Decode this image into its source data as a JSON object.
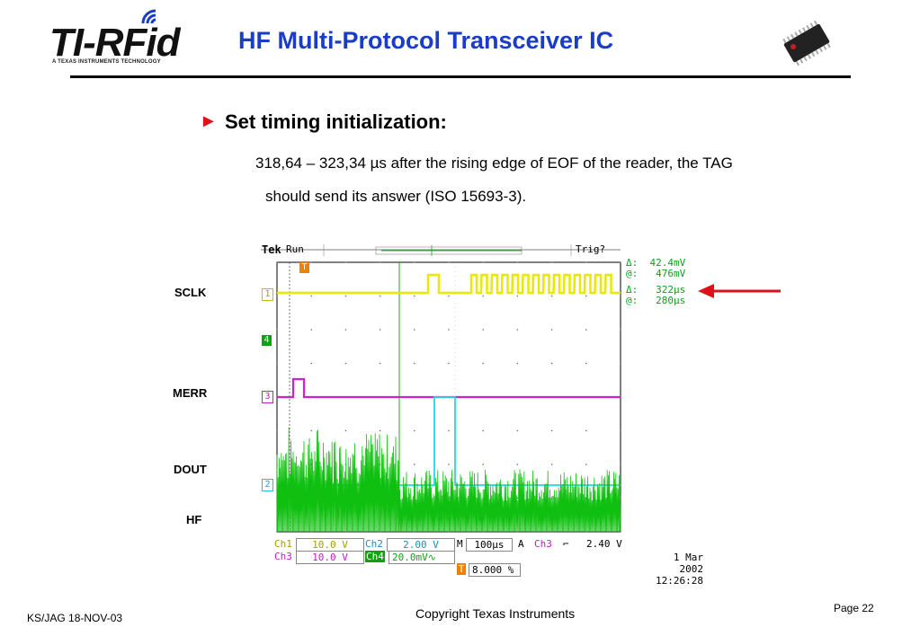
{
  "header": {
    "logo_text": "TI-RFid",
    "logo_subtext": "A TEXAS INSTRUMENTS TECHNOLOGY",
    "title": "HF Multi-Protocol Transceiver IC"
  },
  "bullet": {
    "heading": "Set timing initialization:",
    "line1": "318,64 – 323,34 µs after the rising edge of EOF of the reader, the TAG",
    "line2": "should send its answer (ISO 15693-3)."
  },
  "signals": {
    "sclk": "SCLK",
    "merr": "MERR",
    "dout": "DOUT",
    "hf": "HF"
  },
  "scope": {
    "brand": "Tek",
    "mode": "Run",
    "trig": "Trig?",
    "meas": {
      "row1_sym": "Δ:",
      "row1_val": "42.4mV",
      "row2_sym": "@:",
      "row2_val": "476mV",
      "row3_sym": "Δ:",
      "row3_val": "322µs",
      "row4_sym": "@:",
      "row4_val": "280µs"
    },
    "markers": {
      "ch1": "1",
      "ch4": "4",
      "ch3": "3",
      "ch2": "2",
      "trigger": "T"
    },
    "status": {
      "ch1_label": "Ch1",
      "ch1_val": "10.0 V",
      "ch2_label": "Ch2",
      "ch2_val": "2.00 V",
      "m_label": "M",
      "m_val": "100µs",
      "a_label": "A",
      "a_ch": "Ch3",
      "a_slope": "⌐",
      "a_val": "2.40 V",
      "ch3_label": "Ch3",
      "ch3_val": "10.0 V",
      "ch4_label": "Ch4",
      "ch4_val": "20.0mV",
      "ch4_suffix": "∿",
      "trig_pos": "8.000 %",
      "date": "1 Mar 2002",
      "time": "12:26:28"
    }
  },
  "footer": {
    "left": "KS/JAG  18-NOV-03",
    "center": "Copyright Texas Instruments",
    "right": "Page 22"
  },
  "colors": {
    "title": "#1a3dc8",
    "ch1": "#e8e800",
    "ch2": "#20d8e8",
    "ch3": "#d020d0",
    "ch4": "#10c010",
    "arrow": "#e0101a"
  }
}
